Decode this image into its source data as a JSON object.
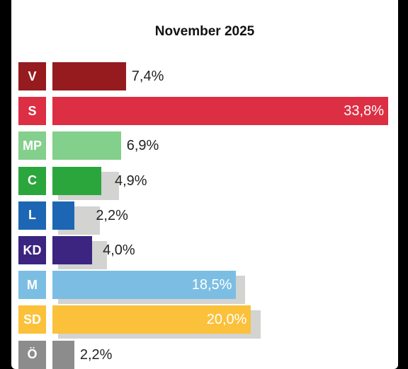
{
  "chart_data": {
    "type": "bar",
    "orientation": "horizontal",
    "title": "November 2025",
    "categories": [
      "V",
      "S",
      "MP",
      "C",
      "L",
      "KD",
      "M",
      "SD",
      "Ö"
    ],
    "values": [
      7.4,
      33.8,
      6.9,
      4.9,
      2.2,
      4.0,
      18.5,
      20.0,
      2.2
    ],
    "value_labels": [
      "7,4%",
      "33,8%",
      "6,9%",
      "4,9%",
      "2,2%",
      "4,0%",
      "18,5%",
      "20,0%",
      "2,2%"
    ],
    "previous_values": [
      null,
      null,
      null,
      6.7,
      4.8,
      5.5,
      19.4,
      21.0,
      2.2
    ],
    "colors": [
      "#951b1f",
      "#dc2f43",
      "#83cf8c",
      "#2ba63c",
      "#1c66b4",
      "#3b2580",
      "#7cbee3",
      "#fbc13b",
      "#8c8c8c"
    ],
    "xlim": [
      0,
      33.8
    ],
    "grid": false,
    "legend": "none"
  }
}
